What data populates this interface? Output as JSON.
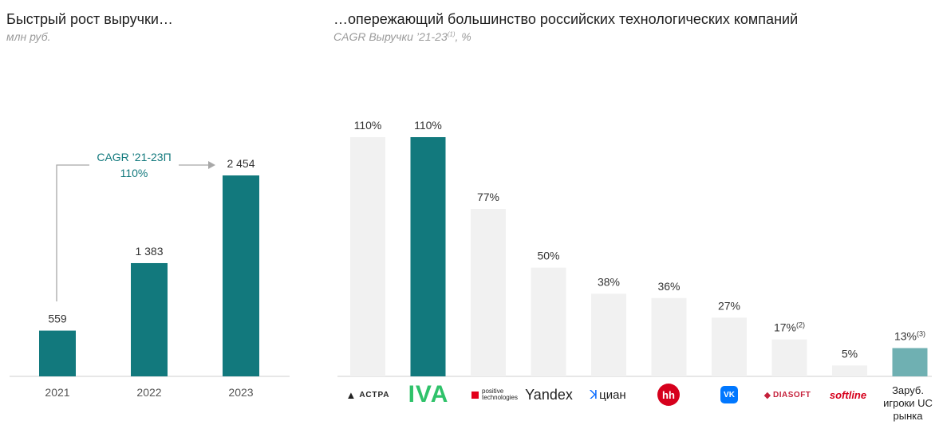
{
  "left": {
    "title": "Быстрый рост выручки…",
    "subtitle": "млн руб.",
    "cagr_line1": "CAGR ’21-23П",
    "cagr_line2": "110%"
  },
  "right": {
    "title": "…опережающий большинство российских технологических компаний",
    "subtitle": "CAGR Выручки ’21-23",
    "subtitle_note": "(1)",
    "subtitle_suffix": ", %"
  },
  "logos": {
    "astra": "АСТРА",
    "iva": "IVA",
    "pt_line1": "positive",
    "pt_line2": "technologies",
    "yandex": "Yandex",
    "cian": "циан",
    "hh": "hh",
    "vk": "VK",
    "diasoft": "DIASOFT",
    "softline": "softline",
    "foreign": "Заруб. игроки UC рынка"
  },
  "colors": {
    "teal": "#12797d",
    "light_gray": "#f1f1f1",
    "light_teal": "#6fb0b2",
    "arrow": "#a8a8a8"
  },
  "chart_data": [
    {
      "type": "bar",
      "categories": [
        "2021",
        "2022",
        "2023"
      ],
      "values": [
        559,
        1383,
        2454
      ],
      "value_labels": [
        "559",
        "1 383",
        "2 454"
      ],
      "title": "Быстрый рост выручки…",
      "ylabel": "млн руб.",
      "ylim": [
        0,
        2800
      ],
      "annotation": "CAGR ’21-23П 110%"
    },
    {
      "type": "bar",
      "categories": [
        "АСТРА",
        "IVA",
        "Positive Technologies",
        "Yandex",
        "Циан",
        "hh",
        "VK",
        "Diasoft",
        "Softline",
        "Заруб. игроки UC рынка"
      ],
      "values": [
        110,
        110,
        77,
        50,
        38,
        36,
        27,
        17,
        5,
        13
      ],
      "value_labels": [
        "110%",
        "110%",
        "77%",
        "50%",
        "38%",
        "36%",
        "27%",
        "17%",
        "5%",
        "13%"
      ],
      "label_notes": [
        "",
        "",
        "",
        "",
        "",
        "",
        "",
        "(2)",
        "",
        "(3)"
      ],
      "highlight": [
        1
      ],
      "title": "…опережающий большинство российских технологических компаний",
      "ylabel": "CAGR Выручки ’21-23(1), %",
      "ylim": [
        0,
        120
      ]
    }
  ]
}
